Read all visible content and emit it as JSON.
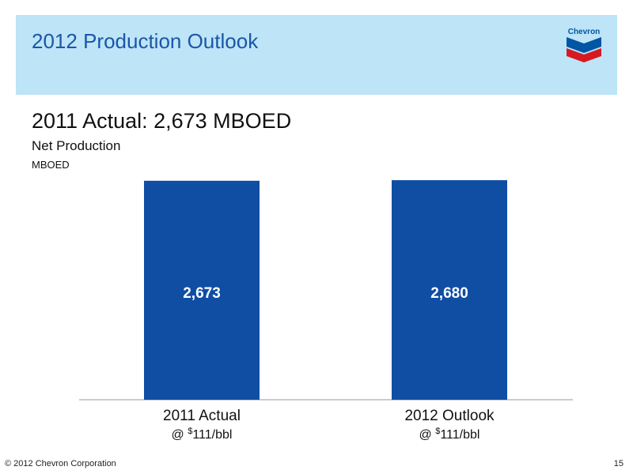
{
  "header": {
    "title": "2012 Production Outlook",
    "logo_text": "Chevron"
  },
  "subtitle": "2011 Actual: 2,673 MBOED",
  "colors": {
    "header_band": "#bde4f7",
    "title_text": "#1b56a6",
    "bar": "#0f4ea3",
    "logo_blue": "#0055a5",
    "logo_red": "#d71920"
  },
  "chart_data": {
    "type": "bar",
    "title": "Net Production",
    "unit": "MBOED",
    "categories": [
      "2011 Actual",
      "2012 Outlook"
    ],
    "category_sublabels": [
      {
        "prefix": "@ ",
        "sup": "$",
        "rest": "111/bbl"
      },
      {
        "prefix": "@ ",
        "sup": "$",
        "rest": "111/bbl"
      }
    ],
    "values": [
      2673,
      2680
    ],
    "data_labels": [
      "2,673",
      "2,680"
    ],
    "ylim": [
      0,
      2700
    ],
    "grid": false
  },
  "footer": {
    "copyright": "© 2012 Chevron Corporation",
    "page_number": "15"
  }
}
